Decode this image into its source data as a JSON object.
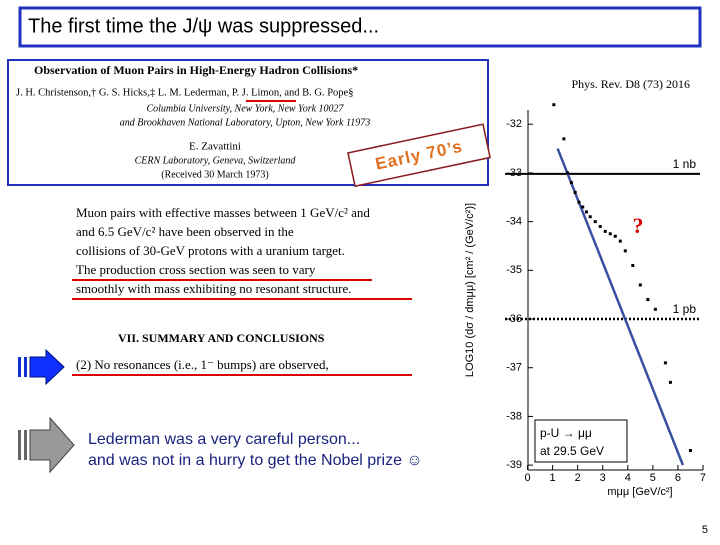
{
  "title": "The first time the J/ψ was suppressed...",
  "paper": {
    "title": "Observation of Muon Pairs in High-Energy Hadron Collisions*",
    "authors": "J. H. Christenson,† G. S. Hicks,‡ L. M. Lederman, P. J. Limon, and B. G. Pope§",
    "affiliation": [
      "Columbia University, New York, New York 10027",
      "and Brookhaven National Laboratory, Upton, New York 11973"
    ],
    "author2": "E. Zavattini",
    "affiliation2": [
      "CERN Laboratory, Geneva, Switzerland",
      "(Received 30 March 1973)"
    ]
  },
  "stamp": "Early 70’s",
  "abstract": [
    "Muon pairs with effective masses between 1 GeV/c² and",
    "and 6.5 GeV/c² have been observed in the",
    "collisions of 30-GeV protons with a uranium target.",
    "The production cross section was seen to vary",
    "smoothly with mass exhibiting no resonant structure."
  ],
  "section": "VII.  SUMMARY AND CONCLUSIONS",
  "conclusion": "(2) No resonances (i.e., 1⁻ bumps) are observed,",
  "remark": [
    "Lederman was a very careful person...",
    "and was not in a hurry to get the Nobel prize ☺"
  ],
  "page_number": "5",
  "chart_data": {
    "type": "scatter",
    "reference": "Phys. Rev. D8 (73) 2016",
    "ylabel": "LOG10 (dσ / dmμμ) [cm² / (GeV/c²)]",
    "xlabel": "mμμ [GeV/c²]",
    "annotation": [
      "p-U → μμ",
      "at 29.5 GeV"
    ],
    "question": "?",
    "color": "#000000",
    "x": [
      1.05,
      1.45,
      1.6,
      1.75,
      1.9,
      2.05,
      2.2,
      2.35,
      2.5,
      2.7,
      2.9,
      3.1,
      3.3,
      3.5,
      3.7,
      3.9,
      4.2,
      4.5,
      4.8,
      5.1,
      5.5,
      5.7,
      6.5
    ],
    "values": [
      -31.6,
      -32.3,
      -33.0,
      -33.2,
      -33.4,
      -33.6,
      -33.7,
      -33.8,
      -33.9,
      -34.0,
      -34.1,
      -34.2,
      -34.25,
      -34.3,
      -34.4,
      -34.6,
      -34.9,
      -35.3,
      -35.6,
      -35.8,
      -36.9,
      -37.3,
      -38.7
    ],
    "hlines": [
      {
        "label": "1 nb",
        "value": -33.02
      },
      {
        "label": "1 pb",
        "value": -36
      }
    ],
    "fit": {
      "color": "#3a4fa0",
      "x": [
        1.2,
        6.2
      ],
      "values": [
        -32.5,
        -39
      ]
    },
    "xlim": [
      -0.9,
      7.2
    ],
    "ylim": [
      -39.1,
      -31.4
    ],
    "xticks": [
      0,
      1,
      2,
      3,
      4,
      5,
      6,
      7
    ],
    "yticks": [
      -32,
      -33,
      -34,
      -35,
      -36,
      -37,
      -38,
      -39
    ]
  }
}
